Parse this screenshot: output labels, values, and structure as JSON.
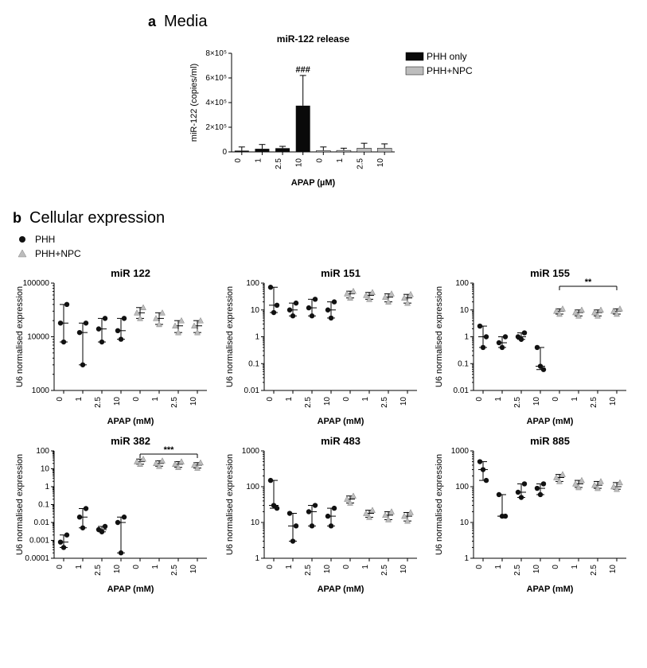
{
  "panelA": {
    "label": "a",
    "section_title": "Media",
    "chart_title": "miR-122 release",
    "ylabel": "miR-122 (copies/ml)",
    "xlabel": "APAP (µM)",
    "ylim": [
      0,
      800000
    ],
    "yticks": [
      0,
      200000,
      400000,
      600000,
      800000
    ],
    "ytick_labels": [
      "0",
      "2×10⁵",
      "4×10⁵",
      "6×10⁵",
      "8×10⁵"
    ],
    "categories": [
      "0",
      "1",
      "2.5",
      "10",
      "0",
      "1",
      "2.5",
      "10"
    ],
    "group_colors": [
      "phh",
      "phh",
      "phh",
      "phh",
      "npc",
      "npc",
      "npc",
      "npc"
    ],
    "values": [
      10000,
      25000,
      30000,
      375000,
      10000,
      12000,
      30000,
      30000
    ],
    "err_hi": [
      40000,
      60000,
      45000,
      620000,
      40000,
      30000,
      70000,
      65000
    ],
    "sig": {
      "index": 3,
      "text": "###"
    },
    "legend": [
      {
        "label": "PHH only",
        "swatch": "#0a0a0a"
      },
      {
        "label": "PHH+NPC",
        "swatch": "#bdbdbd"
      }
    ],
    "bar_width": 0.7,
    "bg": "#ffffff",
    "title_fontsize": 13,
    "label_fontsize": 11
  },
  "panelB": {
    "label": "b",
    "section_title": "Cellular expression",
    "legend": [
      {
        "label": "PHH",
        "marker": "circle",
        "color": "#111111"
      },
      {
        "label": "PHH+NPC",
        "marker": "triangle",
        "color": "#bdbdbd"
      }
    ],
    "xlabel": "APAP (mM)",
    "categories": [
      "0",
      "1",
      "2.5",
      "10",
      "0",
      "1",
      "2.5",
      "10"
    ],
    "group": [
      "phh",
      "phh",
      "phh",
      "phh",
      "npc",
      "npc",
      "npc",
      "npc"
    ],
    "charts": [
      {
        "title": "miR 122",
        "ylabel": "U6 normalised expression",
        "yscale": "log",
        "ylim": [
          1000,
          100000
        ],
        "yticks": [
          1000,
          10000,
          100000
        ],
        "ytick_labels": [
          "1000",
          "10000",
          "100000"
        ],
        "series": [
          {
            "x": 0,
            "pts": [
              18000,
              8000,
              40000
            ]
          },
          {
            "x": 1,
            "pts": [
              12000,
              3000,
              18000
            ]
          },
          {
            "x": 2,
            "pts": [
              14000,
              8000,
              22000
            ]
          },
          {
            "x": 3,
            "pts": [
              13000,
              9000,
              22000
            ]
          },
          {
            "x": 4,
            "pts": [
              28000,
              22000,
              35000
            ]
          },
          {
            "x": 5,
            "pts": [
              22000,
              17000,
              28000
            ]
          },
          {
            "x": 6,
            "pts": [
              16000,
              12000,
              20000
            ]
          },
          {
            "x": 7,
            "pts": [
              16000,
              12000,
              20000
            ]
          }
        ]
      },
      {
        "title": "miR 151",
        "ylabel": "U6 normalised expression",
        "yscale": "log",
        "ylim": [
          0.01,
          100
        ],
        "yticks": [
          0.01,
          0.1,
          1,
          10,
          100
        ],
        "ytick_labels": [
          "0.01",
          "0.1",
          "1",
          "10",
          "100"
        ],
        "series": [
          {
            "x": 0,
            "pts": [
              70,
              8,
              15
            ]
          },
          {
            "x": 1,
            "pts": [
              10,
              6,
              18
            ]
          },
          {
            "x": 2,
            "pts": [
              12,
              6,
              25
            ]
          },
          {
            "x": 3,
            "pts": [
              10,
              5,
              20
            ]
          },
          {
            "x": 4,
            "pts": [
              40,
              28,
              50
            ]
          },
          {
            "x": 5,
            "pts": [
              35,
              25,
              45
            ]
          },
          {
            "x": 6,
            "pts": [
              30,
              20,
              40
            ]
          },
          {
            "x": 7,
            "pts": [
              28,
              18,
              38
            ]
          }
        ]
      },
      {
        "title": "miR 155",
        "ylabel": "U6 normalised expression",
        "yscale": "log",
        "ylim": [
          0.01,
          100
        ],
        "yticks": [
          0.01,
          0.1,
          1,
          10,
          100
        ],
        "ytick_labels": [
          "0.01",
          "0.1",
          "1",
          "10",
          "100"
        ],
        "sig": {
          "text": "**",
          "span": [
            4,
            7
          ]
        },
        "series": [
          {
            "x": 0,
            "pts": [
              2.5,
              0.4,
              1.0
            ]
          },
          {
            "x": 1,
            "pts": [
              0.6,
              0.4,
              1.0
            ]
          },
          {
            "x": 2,
            "pts": [
              1.0,
              0.8,
              1.4
            ]
          },
          {
            "x": 3,
            "pts": [
              0.4,
              0.08,
              0.06
            ]
          },
          {
            "x": 4,
            "pts": [
              9,
              7,
              11
            ]
          },
          {
            "x": 5,
            "pts": [
              8,
              6,
              10
            ]
          },
          {
            "x": 6,
            "pts": [
              8,
              6,
              10
            ]
          },
          {
            "x": 7,
            "pts": [
              9,
              7,
              11
            ]
          }
        ]
      },
      {
        "title": "miR 382",
        "ylabel": "U6 normalised expression",
        "yscale": "log",
        "ylim": [
          0.0001,
          100
        ],
        "yticks": [
          0.0001,
          0.001,
          0.01,
          0.1,
          1,
          10,
          100
        ],
        "ytick_labels": [
          "0.0001",
          "0.001",
          "0.01",
          "0.1",
          "1",
          "10",
          "100"
        ],
        "sig": {
          "text": "***",
          "span": [
            4,
            7
          ]
        },
        "series": [
          {
            "x": 0,
            "pts": [
              0.0008,
              0.0004,
              0.002
            ]
          },
          {
            "x": 1,
            "pts": [
              0.02,
              0.005,
              0.06
            ]
          },
          {
            "x": 2,
            "pts": [
              0.004,
              0.003,
              0.006
            ]
          },
          {
            "x": 3,
            "pts": [
              0.01,
              0.0002,
              0.02
            ]
          },
          {
            "x": 4,
            "pts": [
              25,
              18,
              35
            ]
          },
          {
            "x": 5,
            "pts": [
              20,
              14,
              28
            ]
          },
          {
            "x": 6,
            "pts": [
              18,
              12,
              25
            ]
          },
          {
            "x": 7,
            "pts": [
              16,
              11,
              22
            ]
          }
        ]
      },
      {
        "title": "miR 483",
        "ylabel": "U6 normalised expression",
        "yscale": "log",
        "ylim": [
          1,
          1000
        ],
        "yticks": [
          1,
          10,
          100,
          1000
        ],
        "ytick_labels": [
          "1",
          "10",
          "100",
          "1000"
        ],
        "series": [
          {
            "x": 0,
            "pts": [
              150,
              30,
              25
            ]
          },
          {
            "x": 1,
            "pts": [
              18,
              3,
              8
            ]
          },
          {
            "x": 2,
            "pts": [
              20,
              8,
              30
            ]
          },
          {
            "x": 3,
            "pts": [
              15,
              8,
              25
            ]
          },
          {
            "x": 4,
            "pts": [
              45,
              35,
              55
            ]
          },
          {
            "x": 5,
            "pts": [
              18,
              14,
              22
            ]
          },
          {
            "x": 6,
            "pts": [
              16,
              12,
              20
            ]
          },
          {
            "x": 7,
            "pts": [
              15,
              11,
              19
            ]
          }
        ]
      },
      {
        "title": "miR 885",
        "ylabel": "U6 normalised expression",
        "yscale": "log",
        "ylim": [
          1,
          1000
        ],
        "yticks": [
          1,
          10,
          100,
          1000
        ],
        "ytick_labels": [
          "1",
          "10",
          "100",
          "1000"
        ],
        "series": [
          {
            "x": 0,
            "pts": [
              500,
              300,
              150
            ]
          },
          {
            "x": 1,
            "pts": [
              60,
              15,
              15
            ]
          },
          {
            "x": 2,
            "pts": [
              70,
              50,
              120
            ]
          },
          {
            "x": 3,
            "pts": [
              90,
              60,
              120
            ]
          },
          {
            "x": 4,
            "pts": [
              180,
              140,
              220
            ]
          },
          {
            "x": 5,
            "pts": [
              120,
              95,
              150
            ]
          },
          {
            "x": 6,
            "pts": [
              110,
              90,
              140
            ]
          },
          {
            "x": 7,
            "pts": [
              100,
              85,
              130
            ]
          }
        ]
      }
    ]
  }
}
